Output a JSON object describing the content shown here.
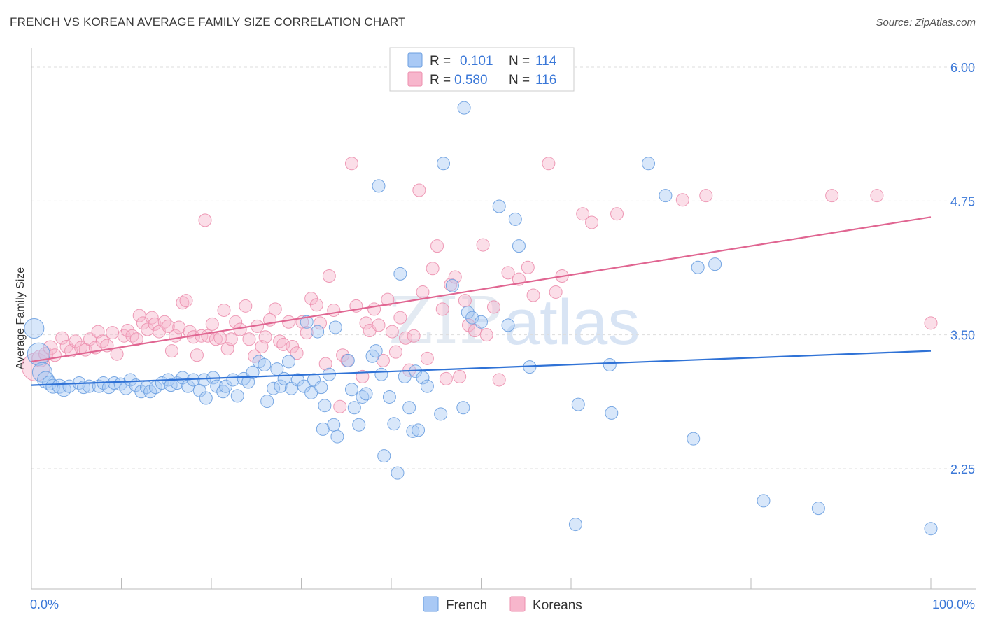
{
  "header": {
    "title": "FRENCH VS KOREAN AVERAGE FAMILY SIZE CORRELATION CHART",
    "source": "Source: ZipAtlas.com"
  },
  "watermark": {
    "zip": "ZIP",
    "atlas": "atlas"
  },
  "legend": {
    "rows": [
      {
        "r_label": "R =",
        "r_value": "0.101",
        "n_label": "N =",
        "n_value": "114",
        "color": "#a9c9f5"
      },
      {
        "r_label": "R =",
        "r_value": "0.580",
        "n_label": "N =",
        "n_value": "116",
        "color": "#f7b6cc"
      }
    ]
  },
  "bottom_legend": [
    {
      "label": "French",
      "color": "#a9c9f5"
    },
    {
      "label": "Koreans",
      "color": "#f7b6cc"
    }
  ],
  "colors": {
    "french_fill": "#a9c9f5",
    "french_stroke": "#6a9ee0",
    "french_line": "#2f72d6",
    "korean_fill": "#f7b6cc",
    "korean_stroke": "#ec8fae",
    "korean_line": "#e06591",
    "grid": "#dddddd",
    "tick_text": "#3b78d8"
  },
  "chart_data": {
    "type": "scatter",
    "title": "FRENCH VS KOREAN AVERAGE FAMILY SIZE CORRELATION CHART",
    "xlabel": "",
    "ylabel": "Average Family Size",
    "xlim": [
      0,
      100
    ],
    "ylim": [
      1.0,
      6.3
    ],
    "x_tick_labels": [
      "0.0%",
      "100.0%"
    ],
    "y_ticks": [
      2.25,
      3.5,
      4.75,
      6.0
    ],
    "y_tick_labels": [
      "2.25",
      "3.50",
      "4.75",
      "6.00"
    ],
    "grid": true,
    "legend_position": "top-center",
    "series": [
      {
        "name": "French",
        "trend": {
          "x": [
            0,
            100
          ],
          "y": [
            3.03,
            3.35
          ]
        },
        "points": [
          [
            0.3,
            3.56,
            14
          ],
          [
            0.8,
            3.32,
            16
          ],
          [
            1.2,
            3.15,
            14
          ],
          [
            1.6,
            3.08,
            12
          ],
          [
            2.0,
            3.05,
            10
          ],
          [
            2.4,
            3.02,
            10
          ],
          [
            3.1,
            3.02,
            10
          ],
          [
            3.6,
            2.99,
            10
          ],
          [
            4.2,
            3.02,
            9
          ],
          [
            5.3,
            3.05,
            9
          ],
          [
            5.8,
            3.01,
            9
          ],
          [
            6.4,
            3.02,
            9
          ],
          [
            7.5,
            3.02,
            9
          ],
          [
            8.0,
            3.05,
            9
          ],
          [
            8.6,
            3.01,
            9
          ],
          [
            9.2,
            3.05,
            9
          ],
          [
            9.9,
            3.04,
            9
          ],
          [
            10.5,
            3.0,
            9
          ],
          [
            11.0,
            3.08,
            9
          ],
          [
            11.6,
            3.03,
            9
          ],
          [
            12.2,
            2.97,
            9
          ],
          [
            12.8,
            3.01,
            9
          ],
          [
            13.2,
            2.97,
            9
          ],
          [
            13.8,
            3.01,
            9
          ],
          [
            14.5,
            3.05,
            9
          ],
          [
            15.2,
            3.08,
            9
          ],
          [
            15.5,
            3.03,
            9
          ],
          [
            16.2,
            3.05,
            9
          ],
          [
            16.8,
            3.1,
            9
          ],
          [
            17.4,
            3.02,
            9
          ],
          [
            18.0,
            3.08,
            9
          ],
          [
            18.7,
            2.98,
            9
          ],
          [
            19.2,
            3.08,
            9
          ],
          [
            19.4,
            2.91,
            9
          ],
          [
            20.2,
            3.1,
            9
          ],
          [
            20.6,
            3.02,
            9
          ],
          [
            21.3,
            2.97,
            9
          ],
          [
            21.6,
            3.02,
            9
          ],
          [
            22.4,
            3.08,
            9
          ],
          [
            22.9,
            2.93,
            9
          ],
          [
            23.6,
            3.09,
            9
          ],
          [
            24.1,
            3.06,
            9
          ],
          [
            24.6,
            3.15,
            9
          ],
          [
            25.3,
            3.25,
            9
          ],
          [
            25.9,
            3.22,
            9
          ],
          [
            26.2,
            2.88,
            9
          ],
          [
            26.9,
            3.0,
            9
          ],
          [
            27.3,
            3.18,
            9
          ],
          [
            27.7,
            3.02,
            9
          ],
          [
            28.1,
            3.09,
            9
          ],
          [
            28.6,
            3.25,
            9
          ],
          [
            28.9,
            3.0,
            9
          ],
          [
            29.6,
            3.08,
            9
          ],
          [
            30.3,
            3.02,
            9
          ],
          [
            30.6,
            3.62,
            9
          ],
          [
            31.1,
            2.96,
            9
          ],
          [
            31.4,
            3.08,
            9
          ],
          [
            32.2,
            3.01,
            9
          ],
          [
            31.8,
            3.53,
            9
          ],
          [
            32.4,
            2.62,
            9
          ],
          [
            32.6,
            2.84,
            9
          ],
          [
            33.1,
            3.13,
            9
          ],
          [
            33.6,
            2.66,
            9
          ],
          [
            33.8,
            3.57,
            9
          ],
          [
            34.0,
            2.55,
            9
          ],
          [
            35.2,
            3.26,
            9
          ],
          [
            35.6,
            2.99,
            9
          ],
          [
            35.9,
            2.82,
            9
          ],
          [
            36.4,
            2.66,
            9
          ],
          [
            36.8,
            2.92,
            9
          ],
          [
            37.2,
            2.95,
            9
          ],
          [
            37.9,
            3.3,
            9
          ],
          [
            38.3,
            3.35,
            9
          ],
          [
            38.6,
            4.89,
            9
          ],
          [
            38.9,
            3.13,
            9
          ],
          [
            39.2,
            2.37,
            9
          ],
          [
            39.8,
            2.92,
            9
          ],
          [
            40.3,
            2.67,
            9
          ],
          [
            40.7,
            2.21,
            9
          ],
          [
            41.0,
            4.07,
            9
          ],
          [
            41.5,
            3.11,
            9
          ],
          [
            42.0,
            2.82,
            9
          ],
          [
            42.4,
            2.6,
            9
          ],
          [
            42.7,
            3.16,
            9
          ],
          [
            43.0,
            2.61,
            9
          ],
          [
            43.5,
            3.1,
            9
          ],
          [
            44.0,
            3.02,
            9
          ],
          [
            45.5,
            2.76,
            9
          ],
          [
            45.8,
            5.1,
            9
          ],
          [
            46.8,
            3.96,
            9
          ],
          [
            48.0,
            2.82,
            9
          ],
          [
            48.1,
            5.62,
            9
          ],
          [
            48.5,
            3.71,
            9
          ],
          [
            49.0,
            3.66,
            9
          ],
          [
            50.0,
            3.62,
            9
          ],
          [
            52.0,
            4.7,
            9
          ],
          [
            53.0,
            3.59,
            9
          ],
          [
            53.8,
            4.58,
            9
          ],
          [
            54.2,
            4.33,
            9
          ],
          [
            55.4,
            3.2,
            9
          ],
          [
            60.5,
            1.73,
            9
          ],
          [
            60.8,
            2.85,
            9
          ],
          [
            64.3,
            3.22,
            9
          ],
          [
            64.5,
            2.77,
            9
          ],
          [
            68.6,
            5.1,
            9
          ],
          [
            70.5,
            4.8,
            9
          ],
          [
            73.6,
            2.53,
            9
          ],
          [
            74.1,
            4.13,
            9
          ],
          [
            76.0,
            4.16,
            9
          ],
          [
            81.4,
            1.95,
            9
          ],
          [
            87.5,
            1.88,
            9
          ],
          [
            100.0,
            1.69,
            9
          ]
        ]
      },
      {
        "name": "Koreans",
        "trend": {
          "x": [
            0,
            100
          ],
          "y": [
            3.25,
            4.6
          ]
        },
        "points": [
          [
            0.5,
            3.2,
            20
          ],
          [
            1.0,
            3.28,
            12
          ],
          [
            1.6,
            3.32,
            10
          ],
          [
            2.1,
            3.38,
            10
          ],
          [
            2.6,
            3.31,
            9
          ],
          [
            3.4,
            3.47,
            9
          ],
          [
            3.9,
            3.39,
            9
          ],
          [
            4.4,
            3.35,
            9
          ],
          [
            4.9,
            3.44,
            9
          ],
          [
            5.5,
            3.38,
            9
          ],
          [
            6.0,
            3.36,
            9
          ],
          [
            6.5,
            3.46,
            9
          ],
          [
            7.1,
            3.38,
            9
          ],
          [
            7.4,
            3.53,
            9
          ],
          [
            7.9,
            3.44,
            9
          ],
          [
            8.4,
            3.4,
            9
          ],
          [
            9.0,
            3.52,
            9
          ],
          [
            9.5,
            3.32,
            9
          ],
          [
            10.3,
            3.49,
            9
          ],
          [
            10.7,
            3.54,
            9
          ],
          [
            11.2,
            3.49,
            9
          ],
          [
            11.7,
            3.46,
            9
          ],
          [
            12.0,
            3.68,
            9
          ],
          [
            12.4,
            3.61,
            9
          ],
          [
            12.9,
            3.55,
            9
          ],
          [
            13.4,
            3.66,
            9
          ],
          [
            13.7,
            3.6,
            9
          ],
          [
            14.2,
            3.53,
            9
          ],
          [
            14.8,
            3.62,
            9
          ],
          [
            15.2,
            3.58,
            9
          ],
          [
            15.6,
            3.35,
            9
          ],
          [
            16.0,
            3.49,
            9
          ],
          [
            16.4,
            3.57,
            9
          ],
          [
            16.8,
            3.8,
            9
          ],
          [
            17.2,
            3.82,
            9
          ],
          [
            17.6,
            3.53,
            9
          ],
          [
            18.0,
            3.48,
            9
          ],
          [
            18.4,
            3.31,
            9
          ],
          [
            18.9,
            3.49,
            9
          ],
          [
            19.3,
            4.57,
            9
          ],
          [
            19.6,
            3.49,
            9
          ],
          [
            20.1,
            3.6,
            9
          ],
          [
            20.5,
            3.46,
            9
          ],
          [
            21.0,
            3.47,
            9
          ],
          [
            21.4,
            3.73,
            9
          ],
          [
            21.8,
            3.37,
            9
          ],
          [
            22.2,
            3.46,
            9
          ],
          [
            22.7,
            3.62,
            9
          ],
          [
            23.2,
            3.55,
            9
          ],
          [
            23.8,
            3.77,
            9
          ],
          [
            24.2,
            3.46,
            9
          ],
          [
            24.8,
            3.3,
            9
          ],
          [
            25.1,
            3.58,
            9
          ],
          [
            25.6,
            3.39,
            9
          ],
          [
            26.0,
            3.48,
            9
          ],
          [
            26.5,
            3.64,
            9
          ],
          [
            27.1,
            3.74,
            9
          ],
          [
            27.6,
            3.44,
            9
          ],
          [
            28.0,
            3.41,
            9
          ],
          [
            28.6,
            3.62,
            9
          ],
          [
            29.0,
            3.39,
            9
          ],
          [
            29.5,
            3.33,
            9
          ],
          [
            30.1,
            3.62,
            9
          ],
          [
            30.6,
            3.52,
            9
          ],
          [
            31.1,
            3.84,
            9
          ],
          [
            31.7,
            3.78,
            9
          ],
          [
            32.1,
            3.61,
            9
          ],
          [
            32.7,
            3.23,
            9
          ],
          [
            33.1,
            4.05,
            9
          ],
          [
            33.6,
            3.73,
            9
          ],
          [
            34.3,
            2.83,
            9
          ],
          [
            34.6,
            3.31,
            9
          ],
          [
            35.1,
            3.26,
            9
          ],
          [
            35.6,
            5.1,
            9
          ],
          [
            36.1,
            3.77,
            9
          ],
          [
            36.8,
            3.11,
            9
          ],
          [
            37.2,
            3.61,
            9
          ],
          [
            37.6,
            3.54,
            9
          ],
          [
            38.1,
            3.74,
            9
          ],
          [
            38.6,
            3.59,
            9
          ],
          [
            39.1,
            3.26,
            9
          ],
          [
            39.6,
            3.83,
            9
          ],
          [
            40.1,
            3.53,
            9
          ],
          [
            40.5,
            3.34,
            9
          ],
          [
            41.0,
            3.66,
            9
          ],
          [
            41.6,
            3.47,
            9
          ],
          [
            42.0,
            3.17,
            9
          ],
          [
            42.5,
            3.49,
            9
          ],
          [
            43.1,
            4.85,
            9
          ],
          [
            43.5,
            3.9,
            9
          ],
          [
            44.0,
            3.28,
            9
          ],
          [
            44.6,
            4.12,
            9
          ],
          [
            45.1,
            4.33,
            9
          ],
          [
            45.7,
            3.74,
            9
          ],
          [
            46.1,
            3.09,
            9
          ],
          [
            46.6,
            3.97,
            9
          ],
          [
            47.1,
            4.04,
            9
          ],
          [
            47.6,
            3.11,
            9
          ],
          [
            48.2,
            3.82,
            9
          ],
          [
            48.6,
            3.59,
            9
          ],
          [
            49.3,
            3.54,
            9
          ],
          [
            50.2,
            4.34,
            9
          ],
          [
            50.6,
            3.5,
            9
          ],
          [
            51.4,
            3.76,
            9
          ],
          [
            52.0,
            3.08,
            9
          ],
          [
            53.0,
            4.08,
            9
          ],
          [
            54.2,
            4.02,
            9
          ],
          [
            55.2,
            4.13,
            9
          ],
          [
            55.8,
            3.87,
            9
          ],
          [
            57.5,
            5.1,
            9
          ],
          [
            58.3,
            3.9,
            9
          ],
          [
            59.0,
            4.05,
            9
          ],
          [
            61.3,
            4.63,
            9
          ],
          [
            62.3,
            4.55,
            9
          ],
          [
            65.1,
            4.63,
            9
          ],
          [
            72.4,
            4.76,
            9
          ],
          [
            75.0,
            4.8,
            9
          ],
          [
            89.0,
            4.8,
            9
          ],
          [
            94.0,
            4.8,
            9
          ],
          [
            100.0,
            3.61,
            9
          ]
        ]
      }
    ]
  }
}
